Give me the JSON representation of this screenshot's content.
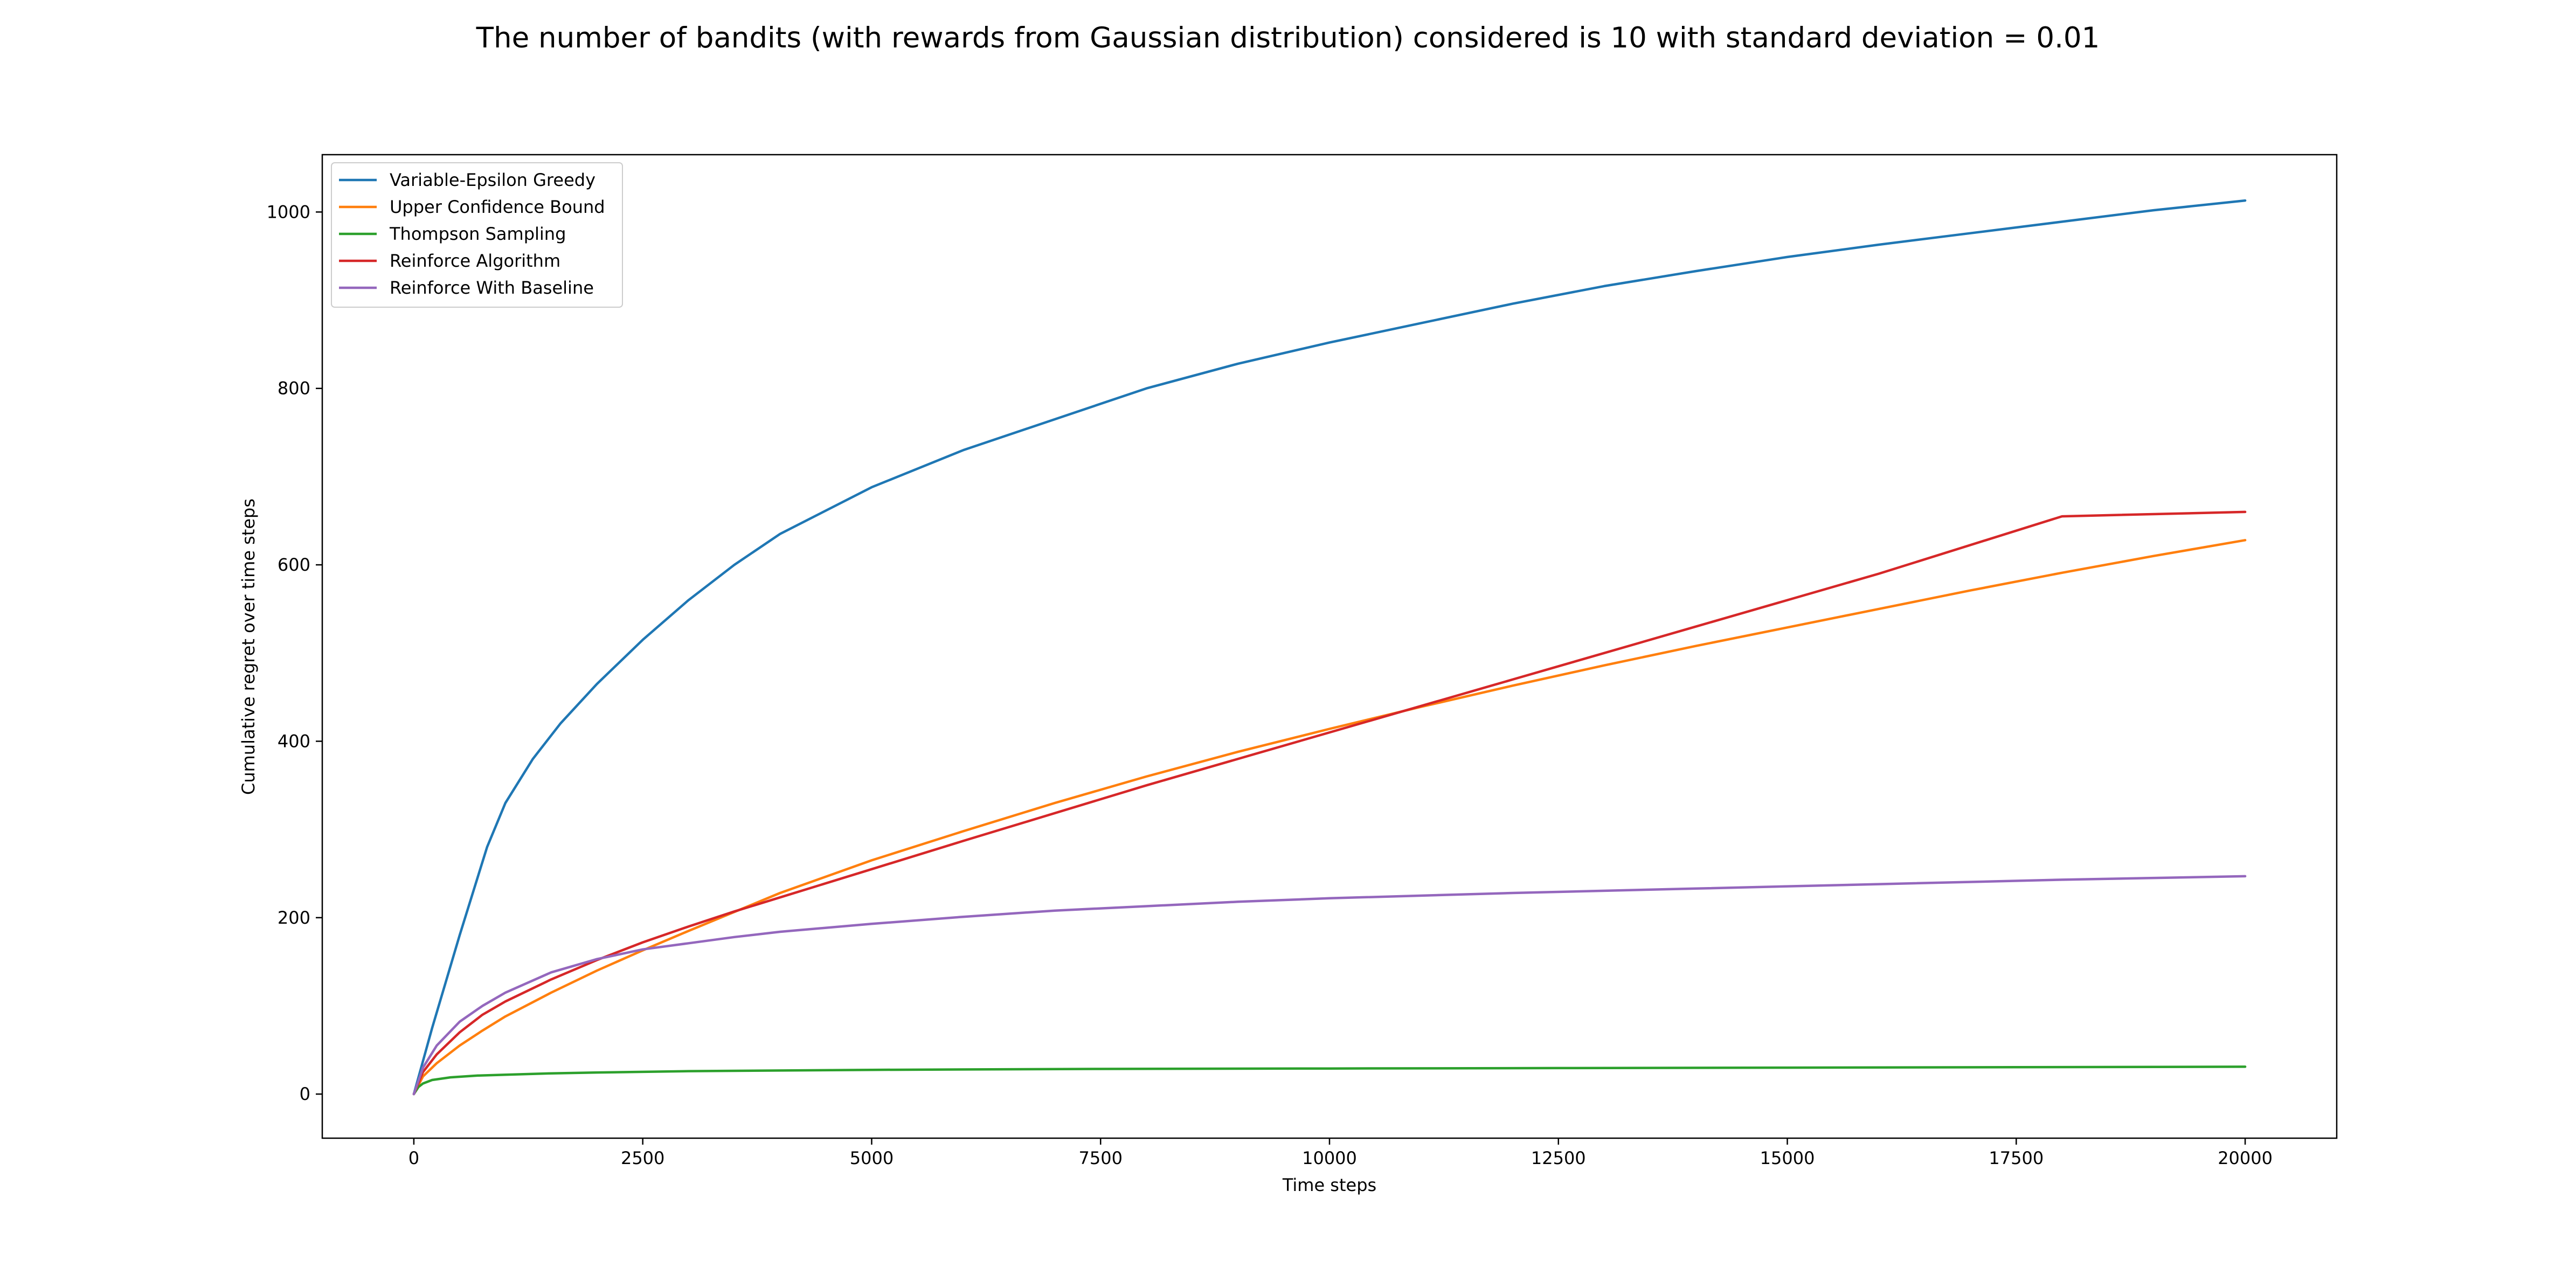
{
  "chart_data": {
    "type": "line",
    "title": "The number of bandits (with rewards from Gaussian distribution) considered is 10 with standard deviation = 0.01",
    "xlabel": "Time steps",
    "ylabel": "Cumulative regret over time steps",
    "xlim": [
      -1000,
      21000
    ],
    "ylim": [
      -50,
      1065
    ],
    "xticks": [
      0,
      2500,
      5000,
      7500,
      10000,
      12500,
      15000,
      17500,
      20000
    ],
    "yticks": [
      0,
      200,
      400,
      600,
      800,
      1000
    ],
    "grid": false,
    "legend_position": "upper-left",
    "series": [
      {
        "name": "Variable-Epsilon Greedy",
        "color": "#1f77b4",
        "x": [
          0,
          200,
          500,
          800,
          1000,
          1300,
          1600,
          2000,
          2500,
          3000,
          3500,
          4000,
          5000,
          6000,
          7000,
          8000,
          9000,
          10000,
          11000,
          12000,
          13000,
          14000,
          15000,
          16000,
          17000,
          18000,
          19000,
          20000
        ],
        "y": [
          0,
          75,
          180,
          280,
          330,
          380,
          420,
          465,
          515,
          560,
          600,
          635,
          688,
          730,
          765,
          800,
          828,
          852,
          874,
          896,
          916,
          933,
          949,
          963,
          976,
          989,
          1002,
          1013
        ]
      },
      {
        "name": "Upper Confidence Bound",
        "color": "#ff7f0e",
        "x": [
          0,
          100,
          250,
          500,
          750,
          1000,
          1500,
          2000,
          2500,
          3000,
          4000,
          5000,
          6000,
          7000,
          8000,
          9000,
          10000,
          11000,
          12000,
          13000,
          14000,
          15000,
          16000,
          17000,
          18000,
          19000,
          20000
        ],
        "y": [
          0,
          20,
          35,
          55,
          72,
          88,
          115,
          140,
          163,
          185,
          228,
          265,
          298,
          330,
          360,
          388,
          414,
          439,
          463,
          486,
          508,
          529,
          550,
          571,
          591,
          610,
          628
        ]
      },
      {
        "name": "Thompson Sampling",
        "color": "#2ca02c",
        "x": [
          0,
          50,
          100,
          200,
          400,
          700,
          1000,
          1500,
          2000,
          3000,
          5000,
          7500,
          10000,
          12500,
          15000,
          17500,
          20000
        ],
        "y": [
          0,
          8,
          12,
          16,
          19,
          21,
          22,
          23.5,
          24.5,
          26,
          27.5,
          28.5,
          29,
          29.5,
          30,
          30.5,
          31
        ]
      },
      {
        "name": "Reinforce Algorithm",
        "color": "#d62728",
        "x": [
          0,
          100,
          250,
          500,
          750,
          1000,
          1500,
          2000,
          2500,
          3000,
          3500,
          4000,
          5000,
          6000,
          8000,
          10000,
          12000,
          14000,
          16000,
          18000,
          20000
        ],
        "y": [
          0,
          25,
          45,
          70,
          90,
          105,
          130,
          152,
          172,
          190,
          207,
          223,
          255,
          287,
          350,
          410,
          470,
          530,
          590,
          655,
          660
        ]
      },
      {
        "name": "Reinforce With Baseline",
        "color": "#9467bd",
        "x": [
          0,
          100,
          250,
          500,
          750,
          1000,
          1500,
          2000,
          2500,
          3000,
          3500,
          4000,
          5000,
          6000,
          7000,
          8000,
          9000,
          10000,
          12000,
          14000,
          16000,
          18000,
          20000
        ],
        "y": [
          0,
          30,
          55,
          82,
          100,
          115,
          138,
          153,
          164,
          171,
          178,
          184,
          193,
          201,
          208,
          213,
          218,
          222,
          228,
          233,
          238,
          243,
          247
        ]
      }
    ]
  }
}
